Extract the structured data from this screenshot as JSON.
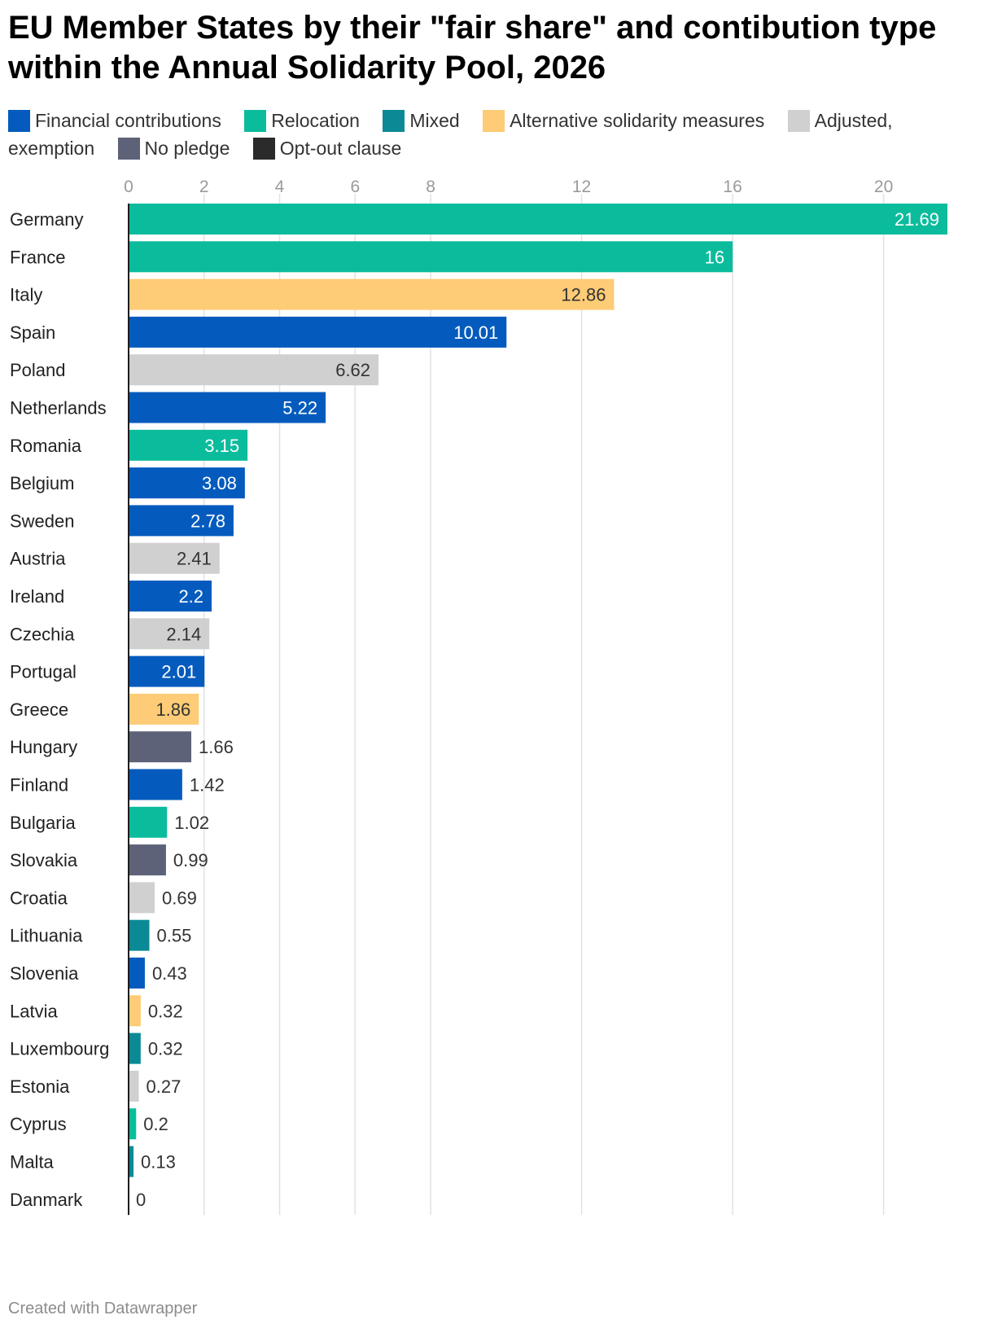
{
  "title": "EU Member States by their \"fair share\" and contibution type within the Annual Solidarity Pool, 2026",
  "legend": [
    {
      "label": "Financial contributions",
      "color": "#045bbd"
    },
    {
      "label": "Relocation",
      "color": "#0bbc9c"
    },
    {
      "label": "Mixed",
      "color": "#0b8a95"
    },
    {
      "label": "Alternative solidarity measures",
      "color": "#fecb76"
    },
    {
      "label": "Adjusted, exemption",
      "color": "#d0d0d0"
    },
    {
      "label": "No pledge",
      "color": "#5d6278"
    },
    {
      "label": "Opt-out clause",
      "color": "#2b2b2b"
    }
  ],
  "footer": "Created with Datawrapper",
  "chart_data": {
    "type": "bar",
    "orientation": "horizontal",
    "x_ticks": [
      0,
      2,
      4,
      6,
      8,
      12,
      16,
      20
    ],
    "xlim": [
      0,
      21.69
    ],
    "grid": true,
    "categories": [
      "Germany",
      "France",
      "Italy",
      "Spain",
      "Poland",
      "Netherlands",
      "Romania",
      "Belgium",
      "Sweden",
      "Austria",
      "Ireland",
      "Czechia",
      "Portugal",
      "Greece",
      "Hungary",
      "Finland",
      "Bulgaria",
      "Slovakia",
      "Croatia",
      "Lithuania",
      "Slovenia",
      "Latvia",
      "Luxembourg",
      "Estonia",
      "Cyprus",
      "Malta",
      "Danmark"
    ],
    "values": [
      21.69,
      16,
      12.86,
      10.01,
      6.62,
      5.22,
      3.15,
      3.08,
      2.78,
      2.41,
      2.2,
      2.14,
      2.01,
      1.86,
      1.66,
      1.42,
      1.02,
      0.99,
      0.69,
      0.55,
      0.43,
      0.32,
      0.32,
      0.27,
      0.2,
      0.13,
      0
    ],
    "value_labels": [
      "21.69",
      "16",
      "12.86",
      "10.01",
      "6.62",
      "5.22",
      "3.15",
      "3.08",
      "2.78",
      "2.41",
      "2.2",
      "2.14",
      "2.01",
      "1.86",
      "1.66",
      "1.42",
      "1.02",
      "0.99",
      "0.69",
      "0.55",
      "0.43",
      "0.32",
      "0.32",
      "0.27",
      "0.2",
      "0.13",
      "0"
    ],
    "contribution_type": [
      "Relocation",
      "Relocation",
      "Alternative solidarity measures",
      "Financial contributions",
      "Adjusted, exemption",
      "Financial contributions",
      "Relocation",
      "Financial contributions",
      "Financial contributions",
      "Adjusted, exemption",
      "Financial contributions",
      "Adjusted, exemption",
      "Financial contributions",
      "Alternative solidarity measures",
      "No pledge",
      "Financial contributions",
      "Relocation",
      "No pledge",
      "Adjusted, exemption",
      "Mixed",
      "Financial contributions",
      "Alternative solidarity measures",
      "Mixed",
      "Adjusted, exemption",
      "Relocation",
      "Mixed",
      "Opt-out clause"
    ]
  }
}
